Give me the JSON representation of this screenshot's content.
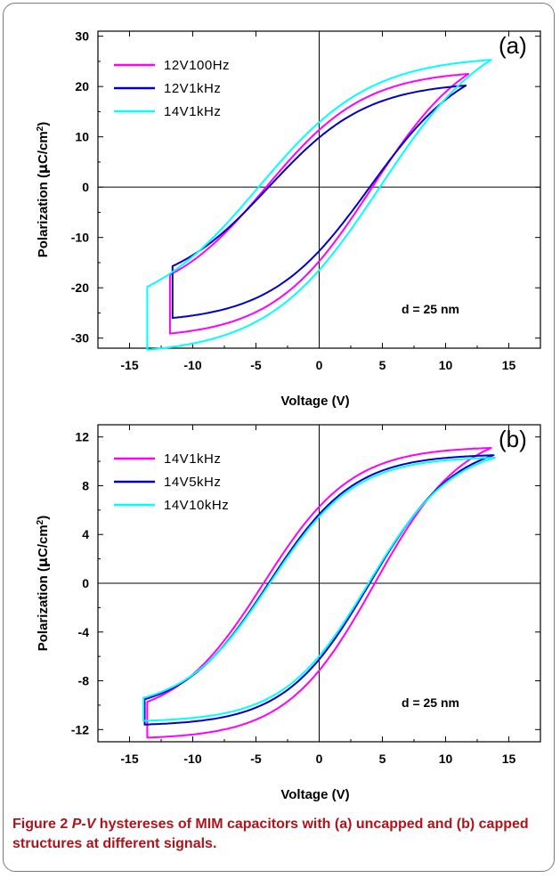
{
  "caption": {
    "figure_label": "Figure 2",
    "pv": "P-V",
    "text": " hystereses of MIM capacitors with (a) uncapped and (b) capped structures at different signals."
  },
  "chart_data": [
    {
      "type": "line",
      "panel_label": "(a)",
      "xlabel": "Voltage (V)",
      "ylabel_pre": "Polarization (",
      "ylabel_mu": "μ",
      "ylabel_mid": "C/cm",
      "ylabel_sup": "2",
      "ylabel_post": ")",
      "xlim": [
        -17.5,
        17.5
      ],
      "ylim": [
        -32,
        31
      ],
      "xticks": [
        -15,
        -10,
        -5,
        0,
        5,
        10,
        15
      ],
      "yticks": [
        -30,
        -20,
        -10,
        0,
        10,
        20,
        30
      ],
      "annotation": "d = 25 nm",
      "series": [
        {
          "name": "12V100Hz",
          "color": "#ff00ff",
          "vmax": 11.8,
          "pmax": 22.5,
          "pr": 11.0,
          "vc": 4.2
        },
        {
          "name": "12V1kHz",
          "color": "#0000c8",
          "vmax": 11.6,
          "pmax": 20.2,
          "pr": 9.5,
          "vc": 4.0
        },
        {
          "name": "14V1kHz",
          "color": "#00ffff",
          "vmax": 13.6,
          "pmax": 25.3,
          "pr": 12.5,
          "vc": 4.8
        }
      ]
    },
    {
      "type": "line",
      "panel_label": "(b)",
      "xlabel": "Voltage (V)",
      "ylabel_pre": "Polarization (",
      "ylabel_mu": "μ",
      "ylabel_mid": "C/cm",
      "ylabel_sup": "2",
      "ylabel_post": ")",
      "xlim": [
        -17.5,
        17.5
      ],
      "ylim": [
        -13,
        13
      ],
      "xticks": [
        -15,
        -10,
        -5,
        0,
        5,
        10,
        15
      ],
      "yticks": [
        -12,
        -8,
        -4,
        0,
        4,
        8,
        12
      ],
      "annotation": "d = 25 nm",
      "series": [
        {
          "name": "14V1kHz",
          "color": "#ff00ff",
          "vmax": 13.6,
          "pmax": 11.1,
          "pr": 6.2,
          "vc": 4.4
        },
        {
          "name": "14V5kHz",
          "color": "#0000c8",
          "vmax": 13.8,
          "pmax": 10.5,
          "pr": 5.6,
          "vc": 4.0
        },
        {
          "name": "14V10kHz",
          "color": "#00ffff",
          "vmax": 13.9,
          "pmax": 10.3,
          "pr": 5.4,
          "vc": 3.9
        }
      ]
    }
  ]
}
